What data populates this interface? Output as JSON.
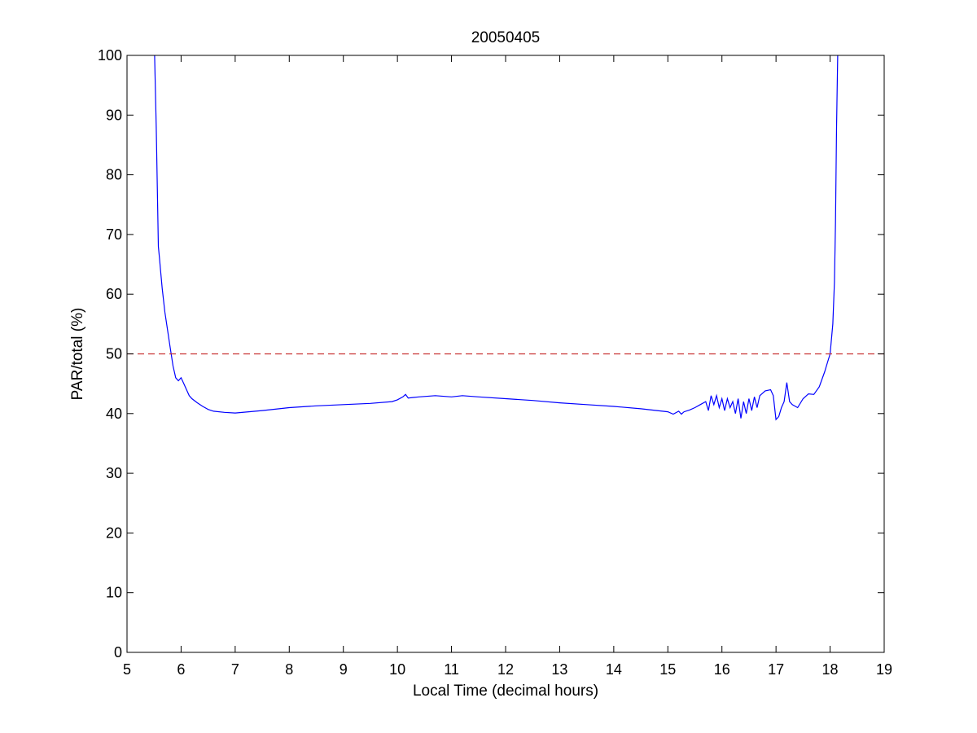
{
  "chart_data": {
    "type": "line",
    "title": "20050405",
    "xlabel": "Local Time (decimal hours)",
    "ylabel": "PAR/total (%)",
    "xlim": [
      5,
      19
    ],
    "ylim": [
      0,
      100
    ],
    "xticks": [
      5,
      6,
      7,
      8,
      9,
      10,
      11,
      12,
      13,
      14,
      15,
      16,
      17,
      18,
      19
    ],
    "yticks": [
      0,
      10,
      20,
      30,
      40,
      50,
      60,
      70,
      80,
      90,
      100
    ],
    "grid": false,
    "series": [
      {
        "color": "#0000ff",
        "x": [
          5.51,
          5.54,
          5.56,
          5.58,
          5.6,
          5.62,
          5.65,
          5.7,
          5.75,
          5.8,
          5.85,
          5.9,
          5.95,
          6.0,
          6.05,
          6.1,
          6.15,
          6.2,
          6.3,
          6.4,
          6.5,
          6.6,
          6.8,
          7.0,
          7.5,
          8.0,
          8.5,
          9.0,
          9.5,
          9.9,
          10.0,
          10.1,
          10.15,
          10.2,
          10.4,
          10.7,
          11.0,
          11.2,
          11.5,
          12.0,
          12.5,
          13.0,
          13.5,
          14.0,
          14.5,
          15.0,
          15.1,
          15.2,
          15.25,
          15.3,
          15.4,
          15.5,
          15.6,
          15.7,
          15.75,
          15.8,
          15.85,
          15.9,
          15.95,
          16.0,
          16.05,
          16.1,
          16.15,
          16.2,
          16.25,
          16.3,
          16.35,
          16.4,
          16.45,
          16.5,
          16.55,
          16.6,
          16.65,
          16.7,
          16.8,
          16.9,
          16.95,
          17.0,
          17.05,
          17.1,
          17.15,
          17.2,
          17.25,
          17.3,
          17.4,
          17.5,
          17.6,
          17.7,
          17.8,
          17.9,
          17.95,
          18.0,
          18.05,
          18.08,
          18.1,
          18.12,
          18.14
        ],
        "y": [
          100,
          88,
          78,
          68,
          66,
          64,
          61,
          57,
          54,
          51,
          48,
          46,
          45.5,
          46,
          45,
          44,
          43,
          42.5,
          41.8,
          41.2,
          40.7,
          40.4,
          40.2,
          40.1,
          40.5,
          41,
          41.3,
          41.5,
          41.7,
          42,
          42.3,
          42.8,
          43.2,
          42.6,
          42.8,
          43,
          42.8,
          43,
          42.8,
          42.5,
          42.2,
          41.8,
          41.5,
          41.2,
          40.8,
          40.3,
          39.9,
          40.4,
          39.9,
          40.3,
          40.6,
          41,
          41.5,
          42,
          40.5,
          43,
          41.5,
          43,
          41,
          42.5,
          40.5,
          42.5,
          41,
          42,
          40,
          42.5,
          39.2,
          42,
          40,
          42.5,
          40.5,
          42.8,
          41,
          43,
          43.8,
          44,
          43,
          39,
          39.5,
          41,
          42,
          45.2,
          42,
          41.5,
          41,
          42.5,
          43.3,
          43.2,
          44.5,
          47,
          48.5,
          50,
          55,
          62,
          72,
          88,
          100
        ]
      },
      {
        "color": "#c83232",
        "style": "dashed",
        "x": [
          5,
          19
        ],
        "y": [
          50,
          50
        ]
      }
    ]
  }
}
